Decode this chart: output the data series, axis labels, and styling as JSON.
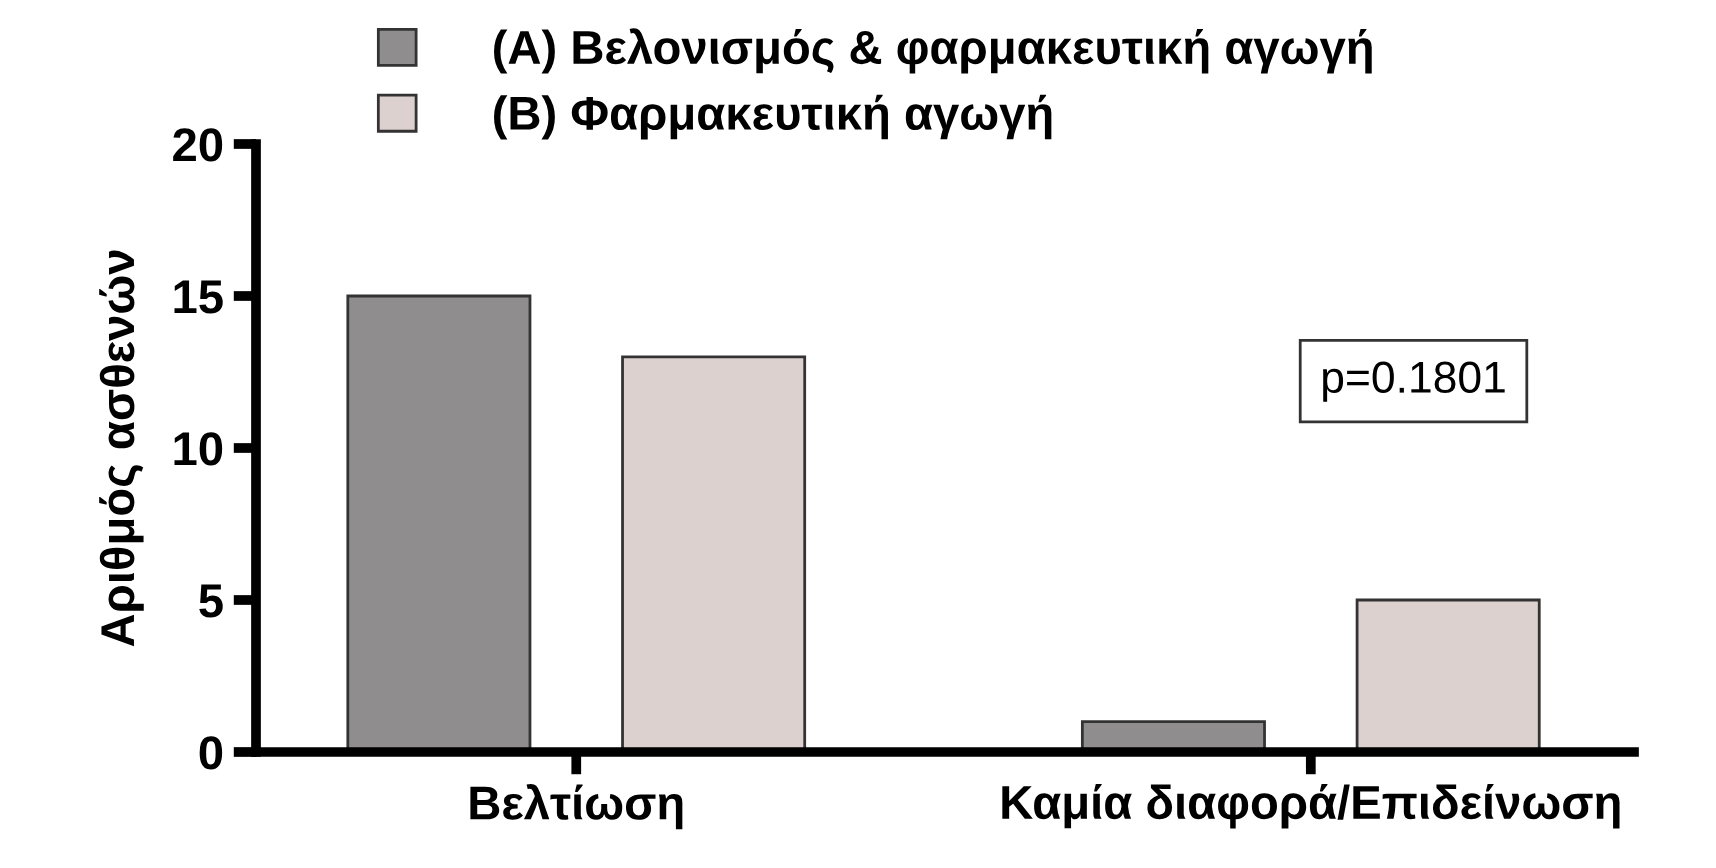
{
  "chart_data": {
    "type": "bar",
    "categories": [
      "Βελτίωση",
      "Καμία διαφορά/Επιδείνωση"
    ],
    "series": [
      {
        "name": "(A) Βελονισμός & φαρμακευτική αγωγή",
        "color": "#8f8d8e",
        "values": [
          15,
          1
        ]
      },
      {
        "name": "(B) Φαρμακευτική αγωγή",
        "color": "#dcd1cf",
        "values": [
          13,
          5
        ]
      }
    ],
    "ylabel": "Αριθμός ασθενών",
    "ylim": [
      0,
      20
    ],
    "yticks": [
      0,
      5,
      10,
      15,
      20
    ],
    "annotations": [
      "p=0.1801"
    ],
    "legend": "top",
    "grid": false
  }
}
